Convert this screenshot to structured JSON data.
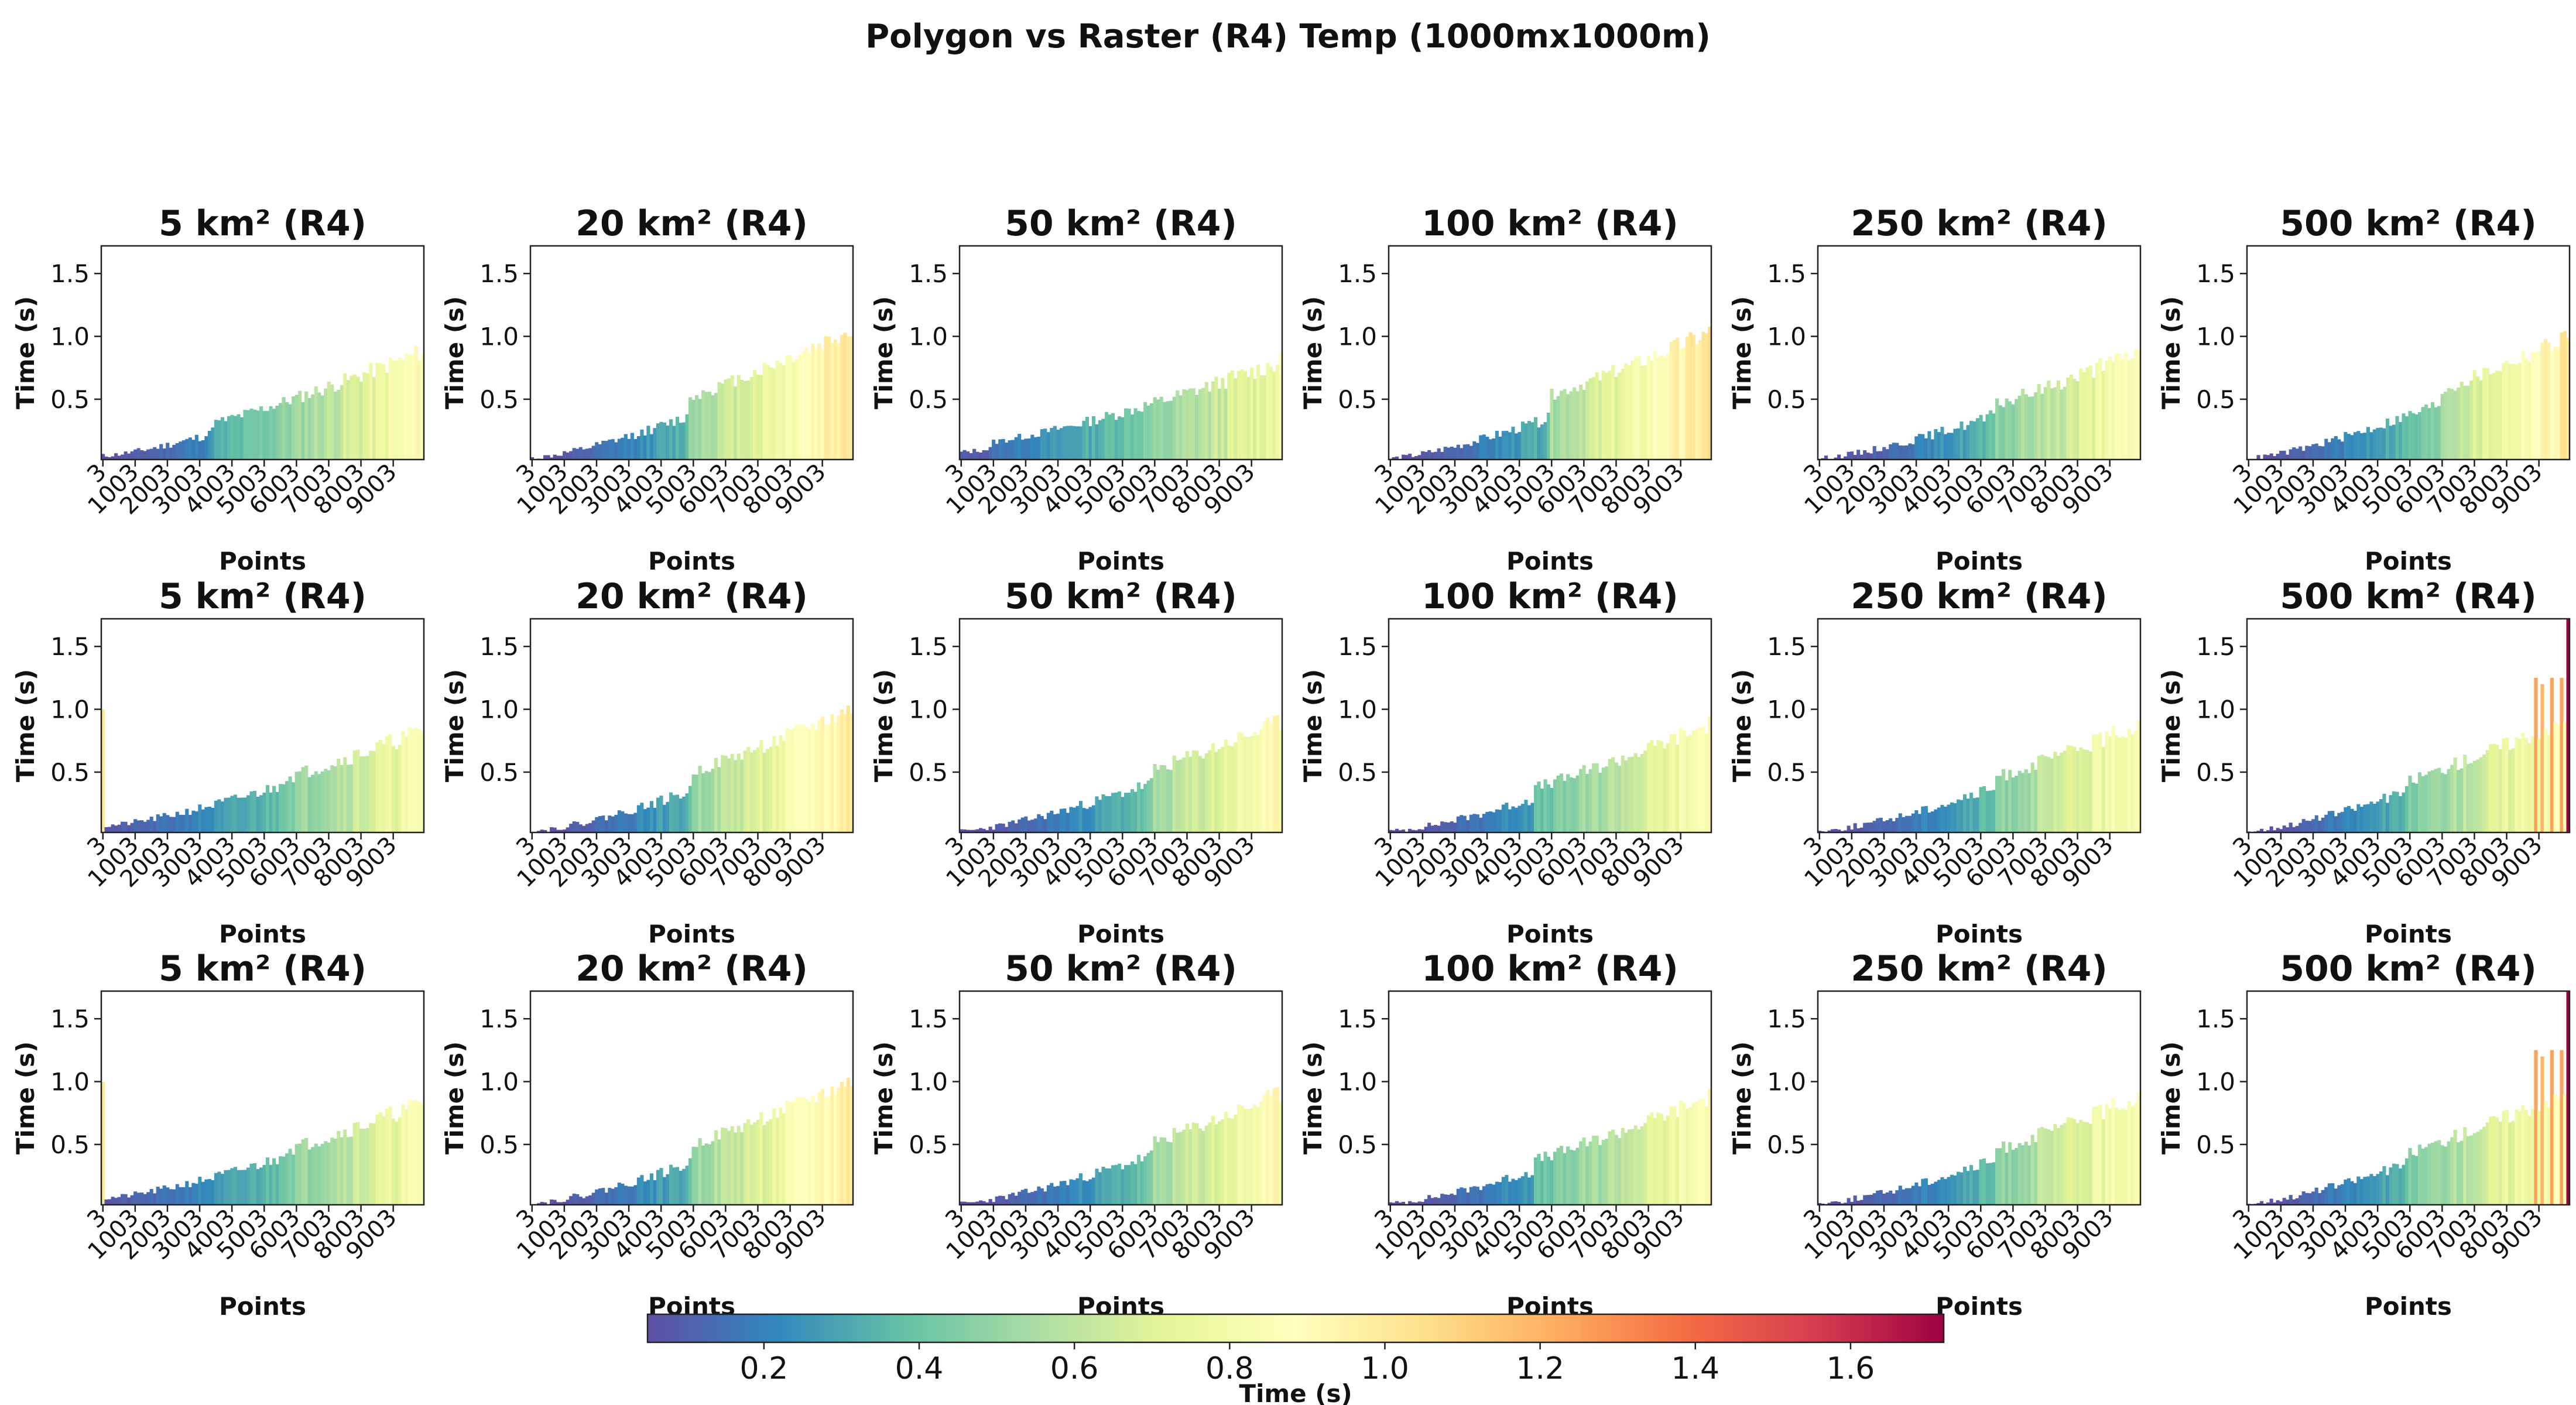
{
  "figure": {
    "title": "Polygon vs Raster (R4) Temp (1000mx1000m)"
  },
  "colorbar": {
    "label": "Time (s)",
    "range": [
      0.05,
      1.72
    ],
    "ticks": [
      "0.2",
      "0.4",
      "0.6",
      "0.8",
      "1.0",
      "1.2",
      "1.4",
      "1.6"
    ],
    "colormap": [
      "#5e4fa2",
      "#3288bd",
      "#66c2a5",
      "#abdda4",
      "#e6f598",
      "#ffffbf",
      "#fee08b",
      "#fdae61",
      "#f46d43",
      "#d53e4f",
      "#9e0142"
    ]
  },
  "chart_data": {
    "type": "bar",
    "layout": "grid 3 rows x 6 columns",
    "x_categories": "3 to 9903 step 100",
    "x_tick_labels": [
      "3",
      "1003",
      "2003",
      "3003",
      "4003",
      "5003",
      "6003",
      "7003",
      "8003",
      "9003"
    ],
    "xlabel": "Points",
    "ylabel": "Time (s)",
    "ylim": [
      0.02,
      1.72
    ],
    "y_tick_labels": [
      "0.5",
      "1.0",
      "1.5"
    ],
    "grid": false,
    "panels": [
      {
        "title": "5 km² (R4)",
        "row": 1,
        "shape": {
          "base": 0.05,
          "end": 0.8,
          "jump_at": 0.34,
          "jump": 0.08,
          "seed": 11
        }
      },
      {
        "title": "20 km² (R4)",
        "row": 1,
        "shape": {
          "base": 0.03,
          "end": 0.9,
          "jump_at": 0.49,
          "jump": 0.15,
          "seed": 12,
          "last": 1.0
        }
      },
      {
        "title": "50 km² (R4)",
        "row": 1,
        "shape": {
          "base": 0.08,
          "end": 0.75,
          "jump_at": 0.1,
          "jump": 0.05,
          "seed": 13
        }
      },
      {
        "title": "100 km² (R4)",
        "row": 1,
        "shape": {
          "base": 0.03,
          "end": 0.85,
          "jump_at": 0.5,
          "jump": 0.18,
          "seed": 14
        }
      },
      {
        "title": "250 km² (R4)",
        "row": 1,
        "shape": {
          "base": 0.03,
          "end": 0.8,
          "jump_at": 0.55,
          "jump": 0.08,
          "seed": 15
        }
      },
      {
        "title": "500 km² (R4)",
        "row": 1,
        "shape": {
          "base": 0.03,
          "end": 0.9,
          "jump_at": 0.6,
          "jump": 0.1,
          "seed": 16
        }
      },
      {
        "title": "5 km² (R4)",
        "row": 2,
        "shape": {
          "base": 0.07,
          "end": 0.78,
          "jump_at": 0.55,
          "jump": 0.05,
          "seed": 21,
          "first": 1.0
        }
      },
      {
        "title": "20 km² (R4)",
        "row": 2,
        "shape": {
          "base": 0.03,
          "end": 0.85,
          "jump_at": 0.5,
          "jump": 0.15,
          "seed": 22
        }
      },
      {
        "title": "50 km² (R4)",
        "row": 2,
        "shape": {
          "base": 0.03,
          "end": 0.8,
          "jump_at": 0.6,
          "jump": 0.1,
          "seed": 23
        }
      },
      {
        "title": "100 km² (R4)",
        "row": 2,
        "shape": {
          "base": 0.03,
          "end": 0.8,
          "jump_at": 0.45,
          "jump": 0.08,
          "seed": 24
        }
      },
      {
        "title": "250 km² (R4)",
        "row": 2,
        "shape": {
          "base": 0.03,
          "end": 0.8,
          "jump_at": 0.55,
          "jump": 0.08,
          "seed": 25
        }
      },
      {
        "title": "500 km² (R4)",
        "row": 2,
        "shape": {
          "base": 0.03,
          "end": 0.85,
          "jump_at": 0.5,
          "jump": 0.08,
          "seed": 26,
          "spikes": [
            [
              0.9,
              1.25
            ],
            [
              0.92,
              1.2
            ],
            [
              0.95,
              1.25
            ],
            [
              0.98,
              1.25
            ],
            [
              0.995,
              1.72
            ]
          ]
        }
      },
      {
        "title": "5 km² (R4)",
        "row": 3,
        "shape": {
          "base": 0.07,
          "end": 0.78,
          "jump_at": 0.55,
          "jump": 0.05,
          "seed": 21,
          "first": 1.0
        }
      },
      {
        "title": "20 km² (R4)",
        "row": 3,
        "shape": {
          "base": 0.03,
          "end": 0.85,
          "jump_at": 0.5,
          "jump": 0.15,
          "seed": 22
        }
      },
      {
        "title": "50 km² (R4)",
        "row": 3,
        "shape": {
          "base": 0.03,
          "end": 0.8,
          "jump_at": 0.6,
          "jump": 0.1,
          "seed": 23
        }
      },
      {
        "title": "100 km² (R4)",
        "row": 3,
        "shape": {
          "base": 0.03,
          "end": 0.8,
          "jump_at": 0.45,
          "jump": 0.08,
          "seed": 24
        }
      },
      {
        "title": "250 km² (R4)",
        "row": 3,
        "shape": {
          "base": 0.03,
          "end": 0.8,
          "jump_at": 0.55,
          "jump": 0.08,
          "seed": 25
        }
      },
      {
        "title": "500 km² (R4)",
        "row": 3,
        "shape": {
          "base": 0.03,
          "end": 0.85,
          "jump_at": 0.5,
          "jump": 0.08,
          "seed": 26,
          "spikes": [
            [
              0.9,
              1.25
            ],
            [
              0.92,
              1.2
            ],
            [
              0.95,
              1.25
            ],
            [
              0.98,
              1.25
            ],
            [
              0.995,
              1.72
            ]
          ]
        }
      }
    ]
  }
}
